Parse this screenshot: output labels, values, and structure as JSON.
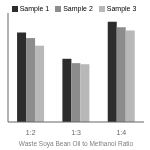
{
  "chart_data": {
    "type": "bar",
    "xlabel": "Waste Soya Bean Oil to Methanol Ratio",
    "categories": [
      "1:2",
      "1:3",
      "1:4"
    ],
    "series": [
      {
        "name": "Sample 1",
        "color": "#2d2d2d",
        "values": [
          0.82,
          0.58,
          0.92
        ]
      },
      {
        "name": "Sample 2",
        "color": "#8c8c8c",
        "values": [
          0.77,
          0.54,
          0.87
        ]
      },
      {
        "name": "Sample 3",
        "color": "#b8b8b8",
        "values": [
          0.7,
          0.53,
          0.84
        ]
      }
    ],
    "ylim": [
      0,
      1.0
    ],
    "grid": false,
    "legend": "top",
    "tick_labels": "x"
  }
}
